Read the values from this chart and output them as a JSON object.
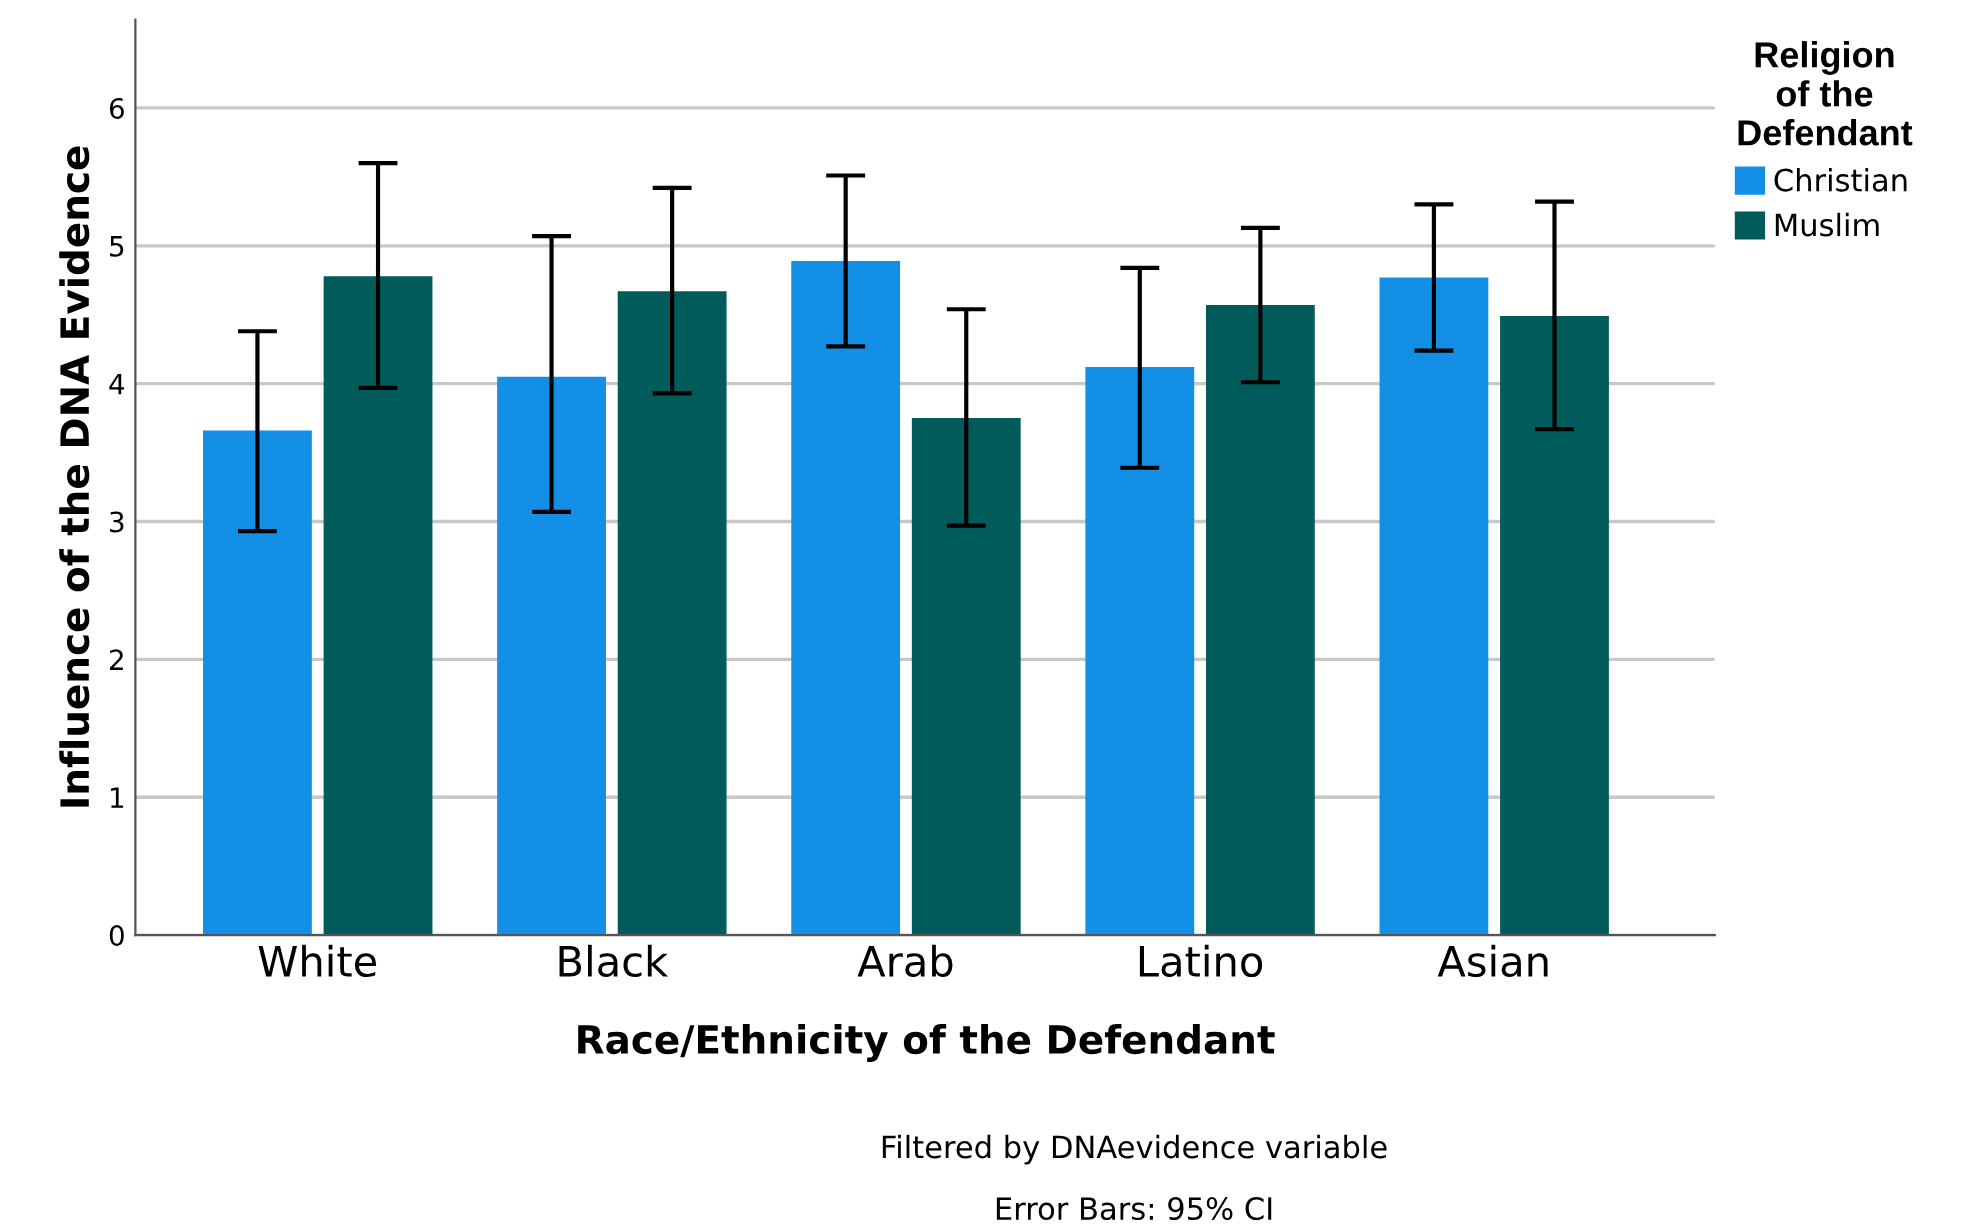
{
  "chart_data": {
    "type": "bar",
    "xlabel": "Race/Ethnicity of the Defendant",
    "ylabel": "Influence of the DNA Evidence",
    "legend_title": "Religion\nof the\nDefendant",
    "categories": [
      "White",
      "Black",
      "Arab",
      "Latino",
      "Asian"
    ],
    "series": [
      {
        "name": "Christian",
        "color": "#1390e6",
        "values": [
          3.66,
          4.05,
          4.89,
          4.12,
          4.77
        ],
        "errors": [
          [
            2.93,
            4.38
          ],
          [
            3.07,
            5.07
          ],
          [
            4.27,
            5.51
          ],
          [
            3.39,
            4.84
          ],
          [
            4.24,
            5.3
          ]
        ]
      },
      {
        "name": "Muslim",
        "color": "#005c5a",
        "values": [
          4.78,
          4.67,
          3.75,
          4.57,
          4.49
        ],
        "errors": [
          [
            3.97,
            5.6
          ],
          [
            3.93,
            5.42
          ],
          [
            2.97,
            4.54
          ],
          [
            4.01,
            5.13
          ],
          [
            3.67,
            5.32
          ]
        ]
      }
    ],
    "ylim": [
      0,
      6.64
    ],
    "yticks": [
      0,
      1,
      2,
      3,
      4,
      5,
      6
    ],
    "grid": "y",
    "legend": "top right",
    "annotations": [
      "Filtered by DNAevidence variable",
      "Error Bars: 95% CI"
    ]
  }
}
